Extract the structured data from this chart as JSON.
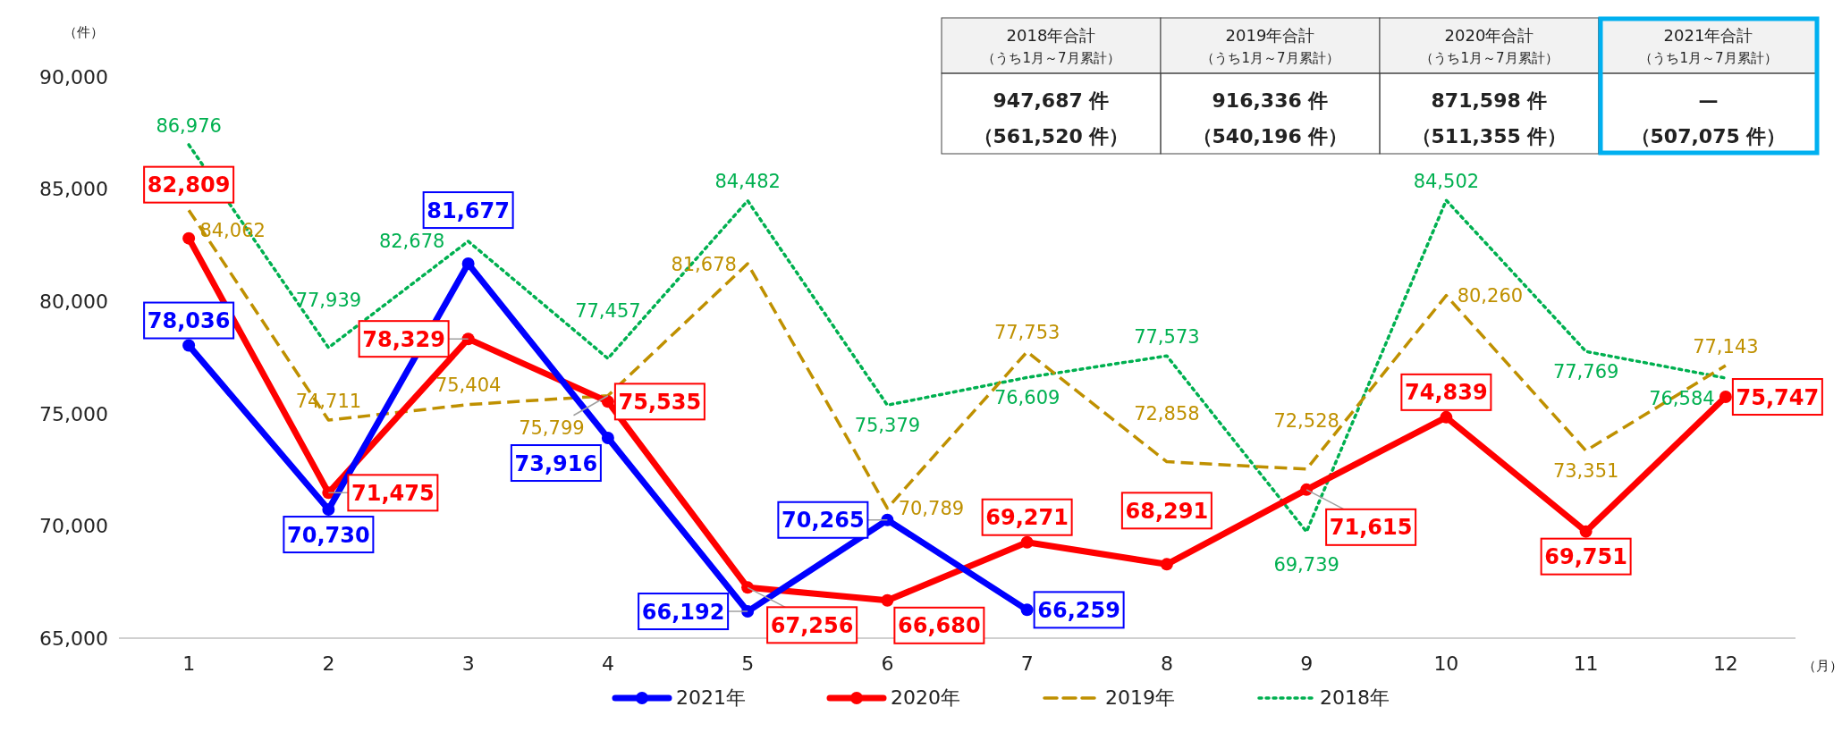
{
  "chart_data": {
    "type": "line",
    "xlabel": "（月）",
    "ylabel": "（件）",
    "categories": [
      "1",
      "2",
      "3",
      "4",
      "5",
      "6",
      "7",
      "8",
      "9",
      "10",
      "11",
      "12"
    ],
    "ylim": [
      65000,
      90000
    ],
    "yticks": [
      {
        "value": 65000,
        "label": "65,000"
      },
      {
        "value": 70000,
        "label": "70,000"
      },
      {
        "value": 75000,
        "label": "75,000"
      },
      {
        "value": 80000,
        "label": "80,000"
      },
      {
        "value": 85000,
        "label": "85,000"
      },
      {
        "value": 90000,
        "label": "90,000"
      }
    ],
    "grid": false,
    "legend": "bottom",
    "series": [
      {
        "name": "2021年",
        "color": "#0000ff",
        "marker": "circle",
        "line_style": "solid",
        "values": [
          78036,
          70730,
          81677,
          73916,
          66192,
          70265,
          66259,
          null,
          null,
          null,
          null,
          null
        ],
        "value_labels": [
          "78,036",
          "70,730",
          "81,677",
          "73,916",
          "66,192",
          "70,265",
          "66,259",
          null,
          null,
          null,
          null,
          null
        ]
      },
      {
        "name": "2020年",
        "color": "#ff0000",
        "marker": "circle",
        "line_style": "solid",
        "values": [
          82809,
          71475,
          78329,
          75535,
          67256,
          66680,
          69271,
          68291,
          71615,
          74839,
          69751,
          75747
        ],
        "value_labels": [
          "82,809",
          "71,475",
          "78,329",
          "75,535",
          "67,256",
          "66,680",
          "69,271",
          "68,291",
          "71,615",
          "74,839",
          "69,751",
          "75,747"
        ]
      },
      {
        "name": "2019年",
        "color": "#bf9000",
        "marker": "none",
        "line_style": "dashed",
        "values": [
          84062,
          74711,
          75404,
          75799,
          81678,
          70789,
          77753,
          72858,
          72528,
          80260,
          73351,
          77143
        ],
        "value_labels": [
          "84,062",
          "74,711",
          "75,404",
          "75,799",
          "81,678",
          "70,789",
          "77,753",
          "72,858",
          "72,528",
          "80,260",
          "73,351",
          "77,143"
        ]
      },
      {
        "name": "2018年",
        "color": "#00b050",
        "marker": "none",
        "line_style": "dotted",
        "values": [
          86976,
          77939,
          82678,
          77457,
          84482,
          75379,
          76609,
          77573,
          69739,
          84502,
          77769,
          76584
        ],
        "value_labels": [
          "86,976",
          "77,939",
          "82,678",
          "77,457",
          "84,482",
          "75,379",
          "76,609",
          "77,573",
          "69,739",
          "84,502",
          "77,769",
          "76,584"
        ]
      }
    ],
    "annotations": [
      "2018年合計",
      "（うち1月～7月累計）",
      "947,687 件",
      "（561,520 件）",
      "2019年合計",
      "（うち1月～7月累計）",
      "916,336 件",
      "（540,196 件）",
      "2020年合計",
      "（うち1月～7月累計）",
      "871,598 件",
      "（511,355 件）",
      "2021年合計",
      "（うち1月～7月累計）",
      "—",
      "（507,075 件）"
    ]
  }
}
